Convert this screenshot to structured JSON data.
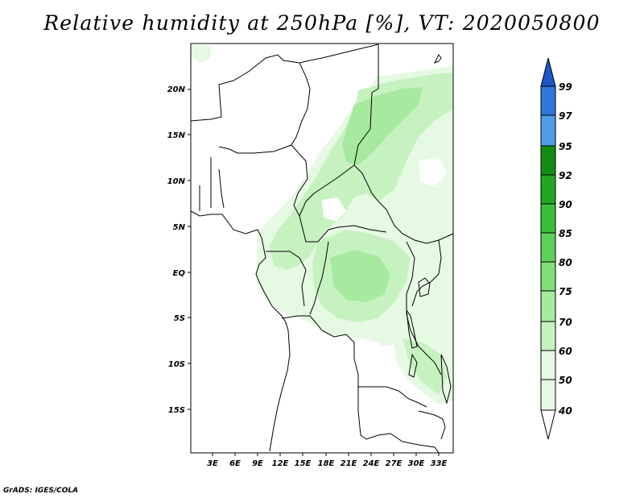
{
  "title": "Relative humidity at 250hPa [%], VT: 2020050800",
  "credit": "GrADS: IGES/COLA",
  "map": {
    "lat_labels": [
      "20N",
      "15N",
      "10N",
      "5N",
      "EQ",
      "5S",
      "10S",
      "15S"
    ],
    "lon_labels": [
      "3E",
      "6E",
      "9E",
      "12E",
      "15E",
      "18E",
      "21E",
      "24E",
      "27E",
      "30E",
      "33E"
    ]
  },
  "colorbar": {
    "levels": [
      "99",
      "97",
      "95",
      "92",
      "90",
      "85",
      "80",
      "75",
      "70",
      "60",
      "50",
      "40"
    ],
    "colors": [
      "#e6f9e3",
      "#c6f2c0",
      "#a6e99f",
      "#80dd78",
      "#5dd05a",
      "#3bbf3b",
      "#22a522",
      "#118e11",
      "#4f9ce8",
      "#2f77dc",
      "#1d56c9"
    ]
  },
  "fill_colors": {
    "light": "#e6f9e3",
    "mid": "#c6f2c0",
    "dark": "#a6e99f"
  }
}
